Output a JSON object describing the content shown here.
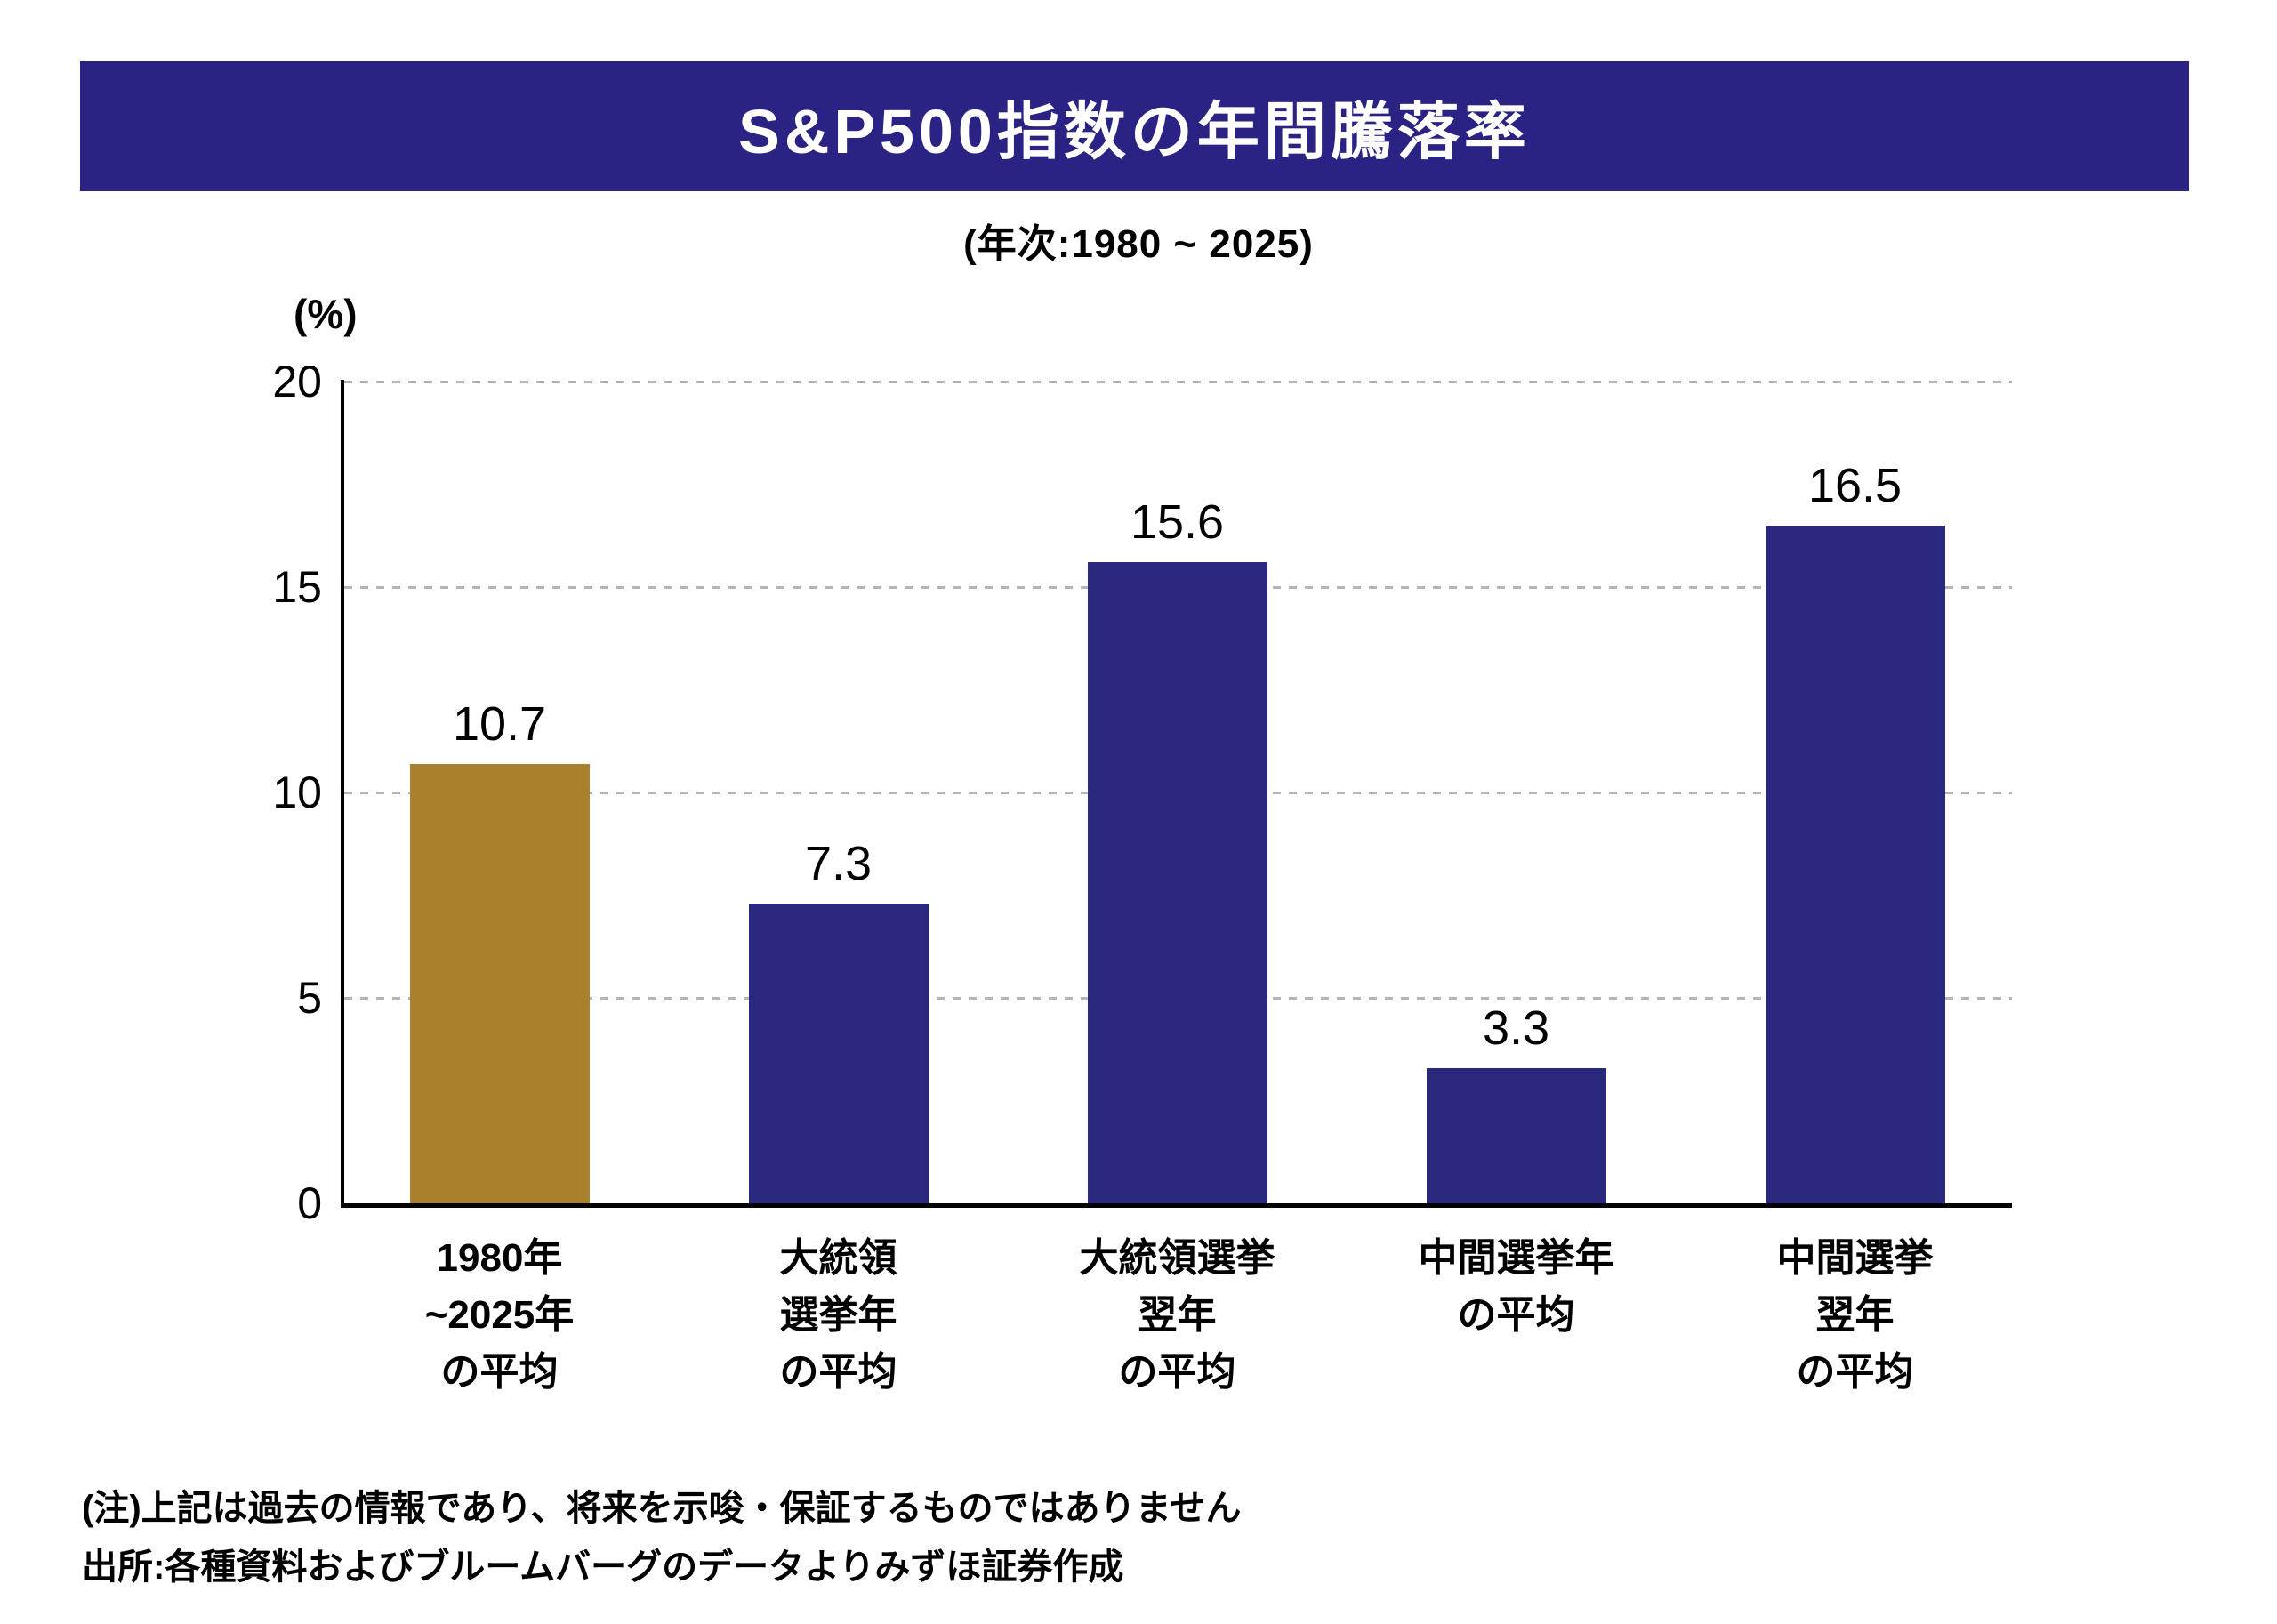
{
  "chart_data": {
    "type": "bar",
    "title": "S&P500指数の年間騰落率",
    "subtitle": "(年次:1980 ~ 2025)",
    "unit_label": "(%)",
    "categories": [
      [
        "1980年",
        "~2025年",
        "の平均"
      ],
      [
        "大統領",
        "選挙年",
        "の平均"
      ],
      [
        "大統領選挙",
        "翌年",
        "の平均"
      ],
      [
        "中間選挙年",
        "の平均"
      ],
      [
        "中間選挙",
        "翌年",
        "の平均"
      ]
    ],
    "values": [
      10.7,
      7.3,
      15.6,
      3.3,
      16.5
    ],
    "value_labels": [
      "10.7",
      "7.3",
      "15.6",
      "3.3",
      "16.5"
    ],
    "bar_colors": [
      "#A9802C",
      "#29287D",
      "#29287D",
      "#29287D",
      "#29287D"
    ],
    "ylim": [
      0,
      20
    ],
    "yticks": [
      0,
      5,
      10,
      15,
      20
    ],
    "grid": "horizontal dashed light-gray at each tick, solid black x-axis and y-axis",
    "legend": "none"
  },
  "colors": {
    "banner_background": "#2A2384",
    "bar_navy": "#29287D",
    "bar_gold": "#A9802C",
    "gridline": "#B5B5B5",
    "axis": "#000000",
    "title_text": "#FFFFFF"
  },
  "notes": {
    "note": "(注)上記は過去の情報であり、将来を示唆・保証するものではありません",
    "source": "出所:各種資料およびブルームバーグのデータよりみずほ証券作成"
  }
}
